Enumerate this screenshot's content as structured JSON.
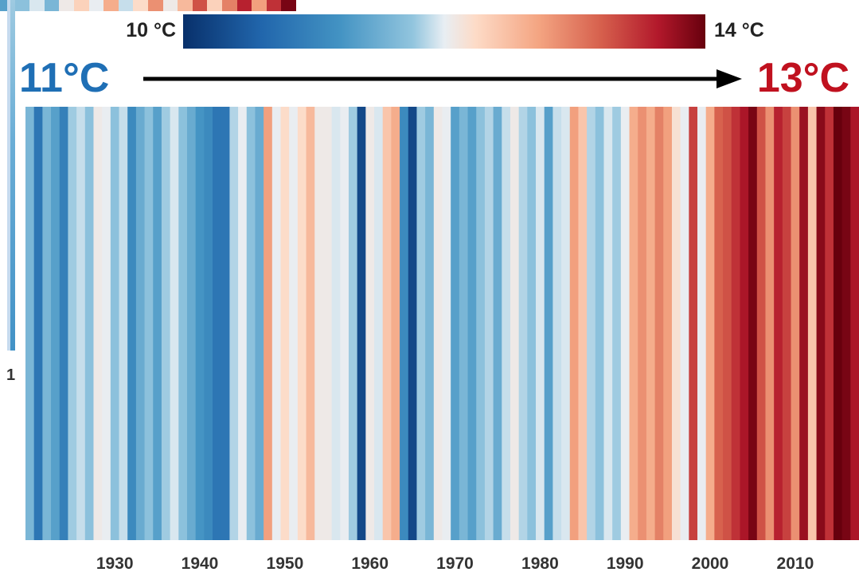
{
  "colorbar": {
    "min_label": "10 °C",
    "max_label": "14 °C",
    "min": 10,
    "max": 14
  },
  "headline": {
    "start_label": "11°C",
    "end_label": "13°C",
    "start_color": "#1f6fb5",
    "end_color": "#c0111f"
  },
  "partial_axis_label": "1",
  "chart_data": {
    "type": "heatmap",
    "subtype": "warming-stripes",
    "x_start": 1920,
    "x_end": 2017,
    "xticks": [
      1930,
      1940,
      1950,
      1960,
      1970,
      1980,
      1990,
      2000,
      2010
    ],
    "value_range": [
      10,
      14
    ],
    "grid": false,
    "legend": "top",
    "colormap": [
      "#08306b",
      "#2166ac",
      "#4393c3",
      "#92c5de",
      "#e8eef3",
      "#fddbc7",
      "#f4a582",
      "#d6604d",
      "#b2182b",
      "#67000d"
    ],
    "values": [
      11.2,
      10.6,
      11.2,
      11.0,
      10.7,
      11.4,
      11.6,
      11.3,
      11.9,
      11.8,
      11.3,
      11.6,
      10.8,
      11.1,
      11.3,
      11.0,
      11.4,
      11.7,
      11.3,
      11.1,
      10.9,
      10.8,
      10.6,
      10.6,
      11.5,
      11.8,
      11.3,
      11.1,
      12.7,
      11.8,
      12.2,
      11.8,
      12.2,
      12.5,
      11.9,
      11.9,
      11.7,
      11.8,
      11.4,
      10.2,
      11.9,
      11.7,
      12.4,
      12.6,
      10.8,
      10.2,
      11.4,
      11.2,
      11.9,
      11.8,
      11.0,
      11.2,
      11.0,
      11.3,
      11.5,
      11.1,
      11.6,
      11.9,
      11.5,
      11.3,
      11.7,
      11.0,
      11.6,
      11.7,
      12.7,
      12.4,
      11.5,
      11.3,
      11.7,
      11.4,
      11.8,
      12.6,
      12.8,
      12.6,
      12.9,
      12.7,
      12.1,
      11.8,
      13.3,
      11.8,
      12.6,
      13.1,
      13.2,
      13.4,
      13.6,
      13.9,
      13.2,
      12.8,
      13.5,
      13.3,
      12.8,
      13.7,
      12.4,
      13.8,
      13.4,
      14.0,
      13.9,
      13.6
    ]
  }
}
